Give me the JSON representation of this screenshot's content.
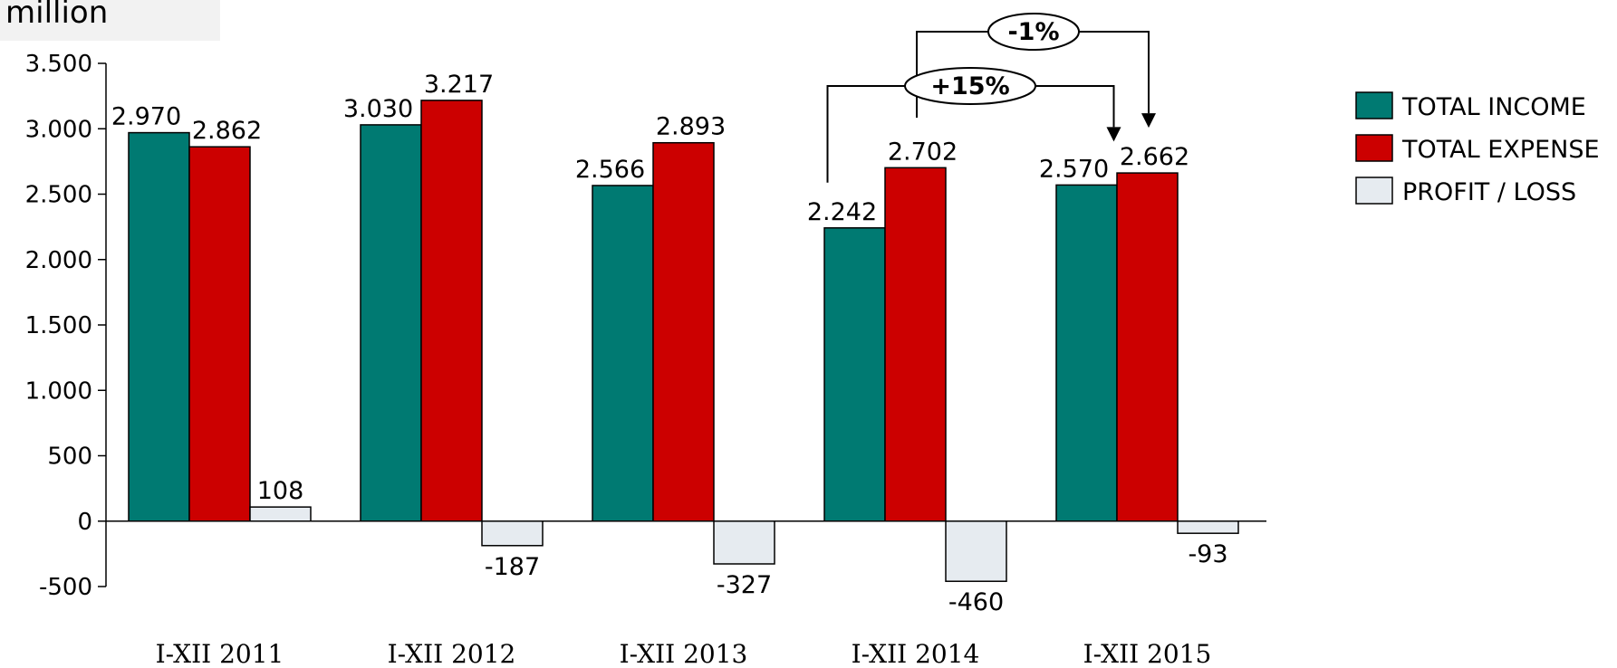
{
  "header": {
    "unit_label": "million"
  },
  "chart_data": {
    "type": "bar",
    "ylim": [
      -500,
      3500
    ],
    "yticks": [
      -500,
      0,
      500,
      1000,
      1500,
      2000,
      2500,
      3000,
      3500
    ],
    "ytick_labels": [
      "-500",
      "0",
      "500",
      "1.000",
      "1.500",
      "2.000",
      "2.500",
      "3.000",
      "3.500"
    ],
    "categories": [
      "I-XII 2011",
      "I-XII 2012",
      "I-XII 2013",
      "I-XII 2014",
      "I-XII 2015"
    ],
    "series": [
      {
        "name": "TOTAL INCOME",
        "color": "#007A72",
        "values": [
          2970,
          3030,
          2566,
          2242,
          2570
        ],
        "labels": [
          "2.970",
          "3.030",
          "2.566",
          "2.242",
          "2.570"
        ]
      },
      {
        "name": "TOTAL EXPENSE",
        "color": "#CC0000",
        "values": [
          2862,
          3217,
          2893,
          2702,
          2662
        ],
        "labels": [
          "2.862",
          "3.217",
          "2.893",
          "2.702",
          "2.662"
        ]
      },
      {
        "name": "PROFIT / LOSS",
        "color": "#E6EBF0",
        "values": [
          108,
          -187,
          -327,
          -460,
          -93
        ],
        "labels": [
          "108",
          "-187",
          "-327",
          "-460",
          "-93"
        ]
      }
    ],
    "legend_position": "right",
    "grid": false,
    "annotations": [
      {
        "text": "+15%",
        "from_category": 3,
        "to_category": 4,
        "series": "TOTAL INCOME"
      },
      {
        "text": "-1%",
        "from_category": 3,
        "to_category": 4,
        "series": "TOTAL EXPENSE"
      }
    ]
  }
}
